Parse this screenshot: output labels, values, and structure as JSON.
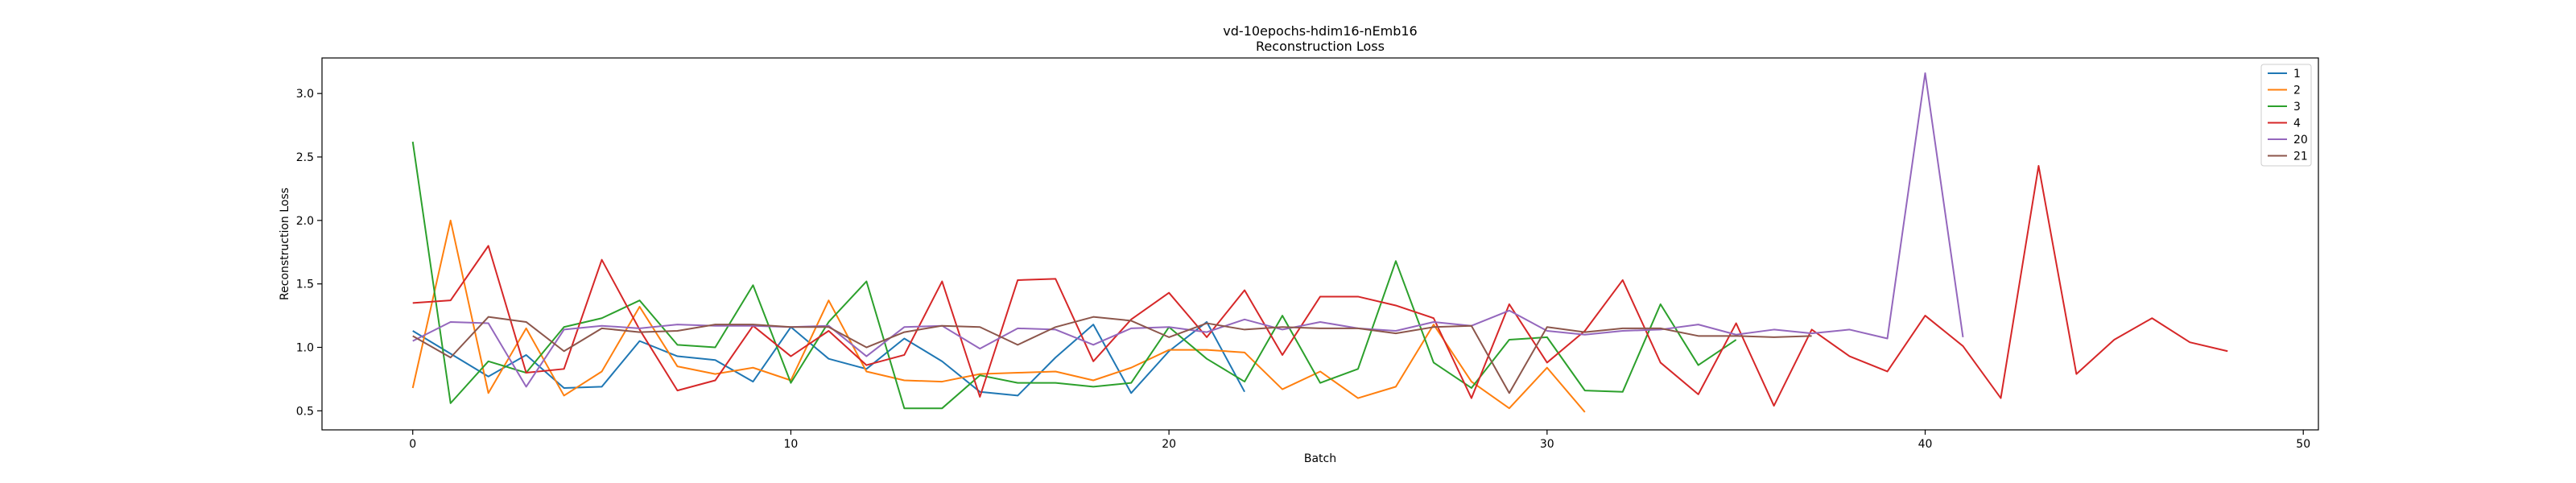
{
  "chart_data": {
    "type": "line",
    "title": "vd-10epochs-hdim16-nEmb16",
    "subtitle": "Reconstruction Loss",
    "xlabel": "Batch",
    "ylabel": "Reconstruction Loss",
    "xlim": [
      -2.4,
      50.4
    ],
    "ylim": [
      0.35,
      3.28
    ],
    "xticks": [
      0,
      10,
      20,
      30,
      40,
      50
    ],
    "yticks": [
      0.5,
      1.0,
      1.5,
      2.0,
      2.5,
      3.0
    ],
    "ytick_labels": [
      "0.5",
      "1.0",
      "1.5",
      "2.0",
      "2.5",
      "3.0"
    ],
    "grid": false,
    "legend": "top-right",
    "series": [
      {
        "name": "1",
        "color": "#1f77b4",
        "values": [
          1.13,
          0.95,
          0.77,
          0.94,
          0.68,
          0.69,
          1.05,
          0.93,
          0.9,
          0.73,
          1.16,
          0.91,
          0.83,
          1.07,
          0.89,
          0.65,
          0.62,
          0.92,
          1.18,
          0.64,
          0.97,
          1.2,
          0.65
        ]
      },
      {
        "name": "2",
        "color": "#ff7f0e",
        "values": [
          0.68,
          2.0,
          0.64,
          1.15,
          0.62,
          0.81,
          1.32,
          0.85,
          0.79,
          0.84,
          0.74,
          1.37,
          0.81,
          0.74,
          0.73,
          0.79,
          0.8,
          0.81,
          0.74,
          0.84,
          0.98,
          0.98,
          0.96,
          0.67,
          0.81,
          0.6,
          0.69,
          1.18,
          0.73,
          0.52,
          0.84,
          0.49
        ]
      },
      {
        "name": "3",
        "color": "#2ca02c",
        "values": [
          2.62,
          0.56,
          0.89,
          0.8,
          1.16,
          1.23,
          1.37,
          1.02,
          1.0,
          1.49,
          0.72,
          1.2,
          1.52,
          0.52,
          0.52,
          0.78,
          0.72,
          0.72,
          0.69,
          0.72,
          1.16,
          0.91,
          0.73,
          1.25,
          0.72,
          0.83,
          1.68,
          0.88,
          0.68,
          1.06,
          1.08,
          0.66,
          0.65,
          1.34,
          0.86,
          1.06
        ]
      },
      {
        "name": "4",
        "color": "#d62728",
        "values": [
          1.35,
          1.37,
          1.8,
          0.8,
          0.83,
          1.69,
          1.14,
          0.66,
          0.74,
          1.17,
          0.93,
          1.13,
          0.86,
          0.94,
          1.52,
          0.61,
          1.53,
          1.54,
          0.89,
          1.22,
          1.43,
          1.08,
          1.45,
          0.94,
          1.4,
          1.4,
          1.33,
          1.23,
          0.6,
          1.34,
          0.88,
          1.13,
          1.53,
          0.88,
          0.63,
          1.19,
          0.54,
          1.14,
          0.93,
          0.81,
          1.25,
          1.01,
          0.6,
          2.43,
          0.79,
          1.06,
          1.23,
          1.04,
          0.97
        ]
      },
      {
        "name": "20",
        "color": "#9467bd",
        "values": [
          1.05,
          1.2,
          1.19,
          0.69,
          1.14,
          1.17,
          1.15,
          1.18,
          1.17,
          1.17,
          1.16,
          1.17,
          0.93,
          1.16,
          1.17,
          0.99,
          1.15,
          1.14,
          1.02,
          1.15,
          1.16,
          1.12,
          1.22,
          1.14,
          1.2,
          1.15,
          1.13,
          1.2,
          1.17,
          1.29,
          1.13,
          1.1,
          1.13,
          1.14,
          1.18,
          1.1,
          1.14,
          1.11,
          1.14,
          1.07,
          3.16,
          1.08
        ]
      },
      {
        "name": "21",
        "color": "#8c564b",
        "values": [
          1.09,
          0.92,
          1.24,
          1.2,
          0.97,
          1.15,
          1.12,
          1.13,
          1.18,
          1.18,
          1.16,
          1.16,
          1.0,
          1.12,
          1.17,
          1.16,
          1.02,
          1.16,
          1.24,
          1.21,
          1.08,
          1.19,
          1.14,
          1.16,
          1.15,
          1.15,
          1.11,
          1.16,
          1.17,
          0.64,
          1.16,
          1.12,
          1.15,
          1.15,
          1.09,
          1.09,
          1.08,
          1.09
        ]
      }
    ]
  }
}
